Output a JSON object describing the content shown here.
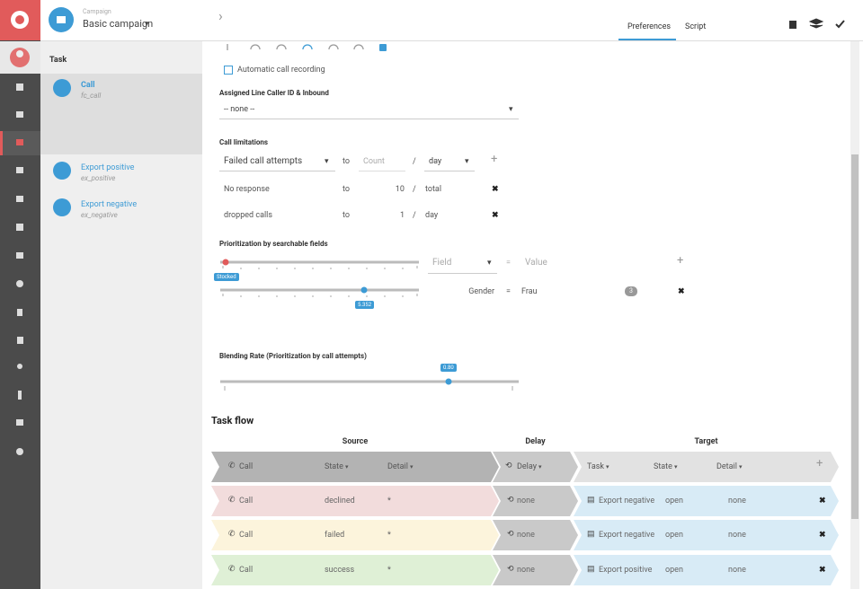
{
  "campaign": {
    "label": "Campaign",
    "name": "Basic campaign"
  },
  "tasks": {
    "title": "Task",
    "items": [
      {
        "name": "Call",
        "id": "fc_call"
      },
      {
        "name": "Export positive",
        "id": "ex_positive"
      },
      {
        "name": "Export negative",
        "id": "ex_negative"
      }
    ]
  },
  "tabs": [
    "Preferences",
    "Script"
  ],
  "preferences": {
    "automatic_recording": "Automatic call recording",
    "caller_id": {
      "label": "Assigned Line Caller ID & Inbound",
      "value": "-- none --"
    },
    "call_limitations": {
      "label": "Call limitations",
      "new": {
        "attempt": "Failed call attempts",
        "to": "to",
        "count": "Count",
        "sep": "/",
        "period": "day"
      },
      "rows": [
        [
          "No response",
          "to",
          "10",
          "/",
          "total"
        ],
        [
          "dropped calls",
          "to",
          "1",
          "/",
          "day"
        ]
      ]
    },
    "prioritization": {
      "label": "Prioritization by searchable fields",
      "slider1_label": "Stocked",
      "field": "Field",
      "eq": "=",
      "value": "Value",
      "slider2_label": "5.352",
      "rows": [
        {
          "field": "Gender",
          "eq": "=",
          "value": "Frau",
          "badge": "3"
        }
      ]
    },
    "blending": {
      "label": "Blending Rate (Prioritization by call attempts)",
      "value": "0.80"
    }
  },
  "task_flow": {
    "title": "Task flow",
    "groups": [
      "Source",
      "Delay",
      "Target"
    ],
    "header": [
      "Call",
      "State",
      "Detail",
      "Delay",
      "Task",
      "State",
      "Detail"
    ],
    "rows": [
      [
        "Call",
        "declined",
        "*",
        "none",
        "Export negative",
        "open",
        "none"
      ],
      [
        "Call",
        "failed",
        "*",
        "none",
        "Export negative",
        "open",
        "none"
      ],
      [
        "Call",
        "success",
        "*",
        "none",
        "Export positive",
        "open",
        "none"
      ]
    ]
  }
}
